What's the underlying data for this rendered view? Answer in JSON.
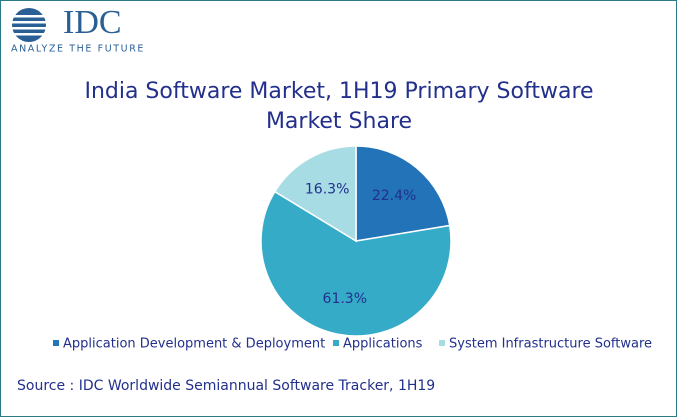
{
  "logo": {
    "name": "IDC",
    "tagline": "ANALYZE THE FUTURE"
  },
  "chart_data": {
    "type": "pie",
    "title": "India Software Market, 1H19 Primary Software Market Share",
    "categories": [
      "Application Development & Deployment",
      "Applications",
      "System Infrastructure Software"
    ],
    "values": [
      22.4,
      61.3,
      16.3
    ],
    "value_labels": [
      "22.4%",
      "61.3%",
      "16.3%"
    ],
    "colors": [
      "#2373b8",
      "#35abc8",
      "#a7dce5"
    ]
  },
  "source": "Source : IDC Worldwide Semiannual Software Tracker, 1H19"
}
